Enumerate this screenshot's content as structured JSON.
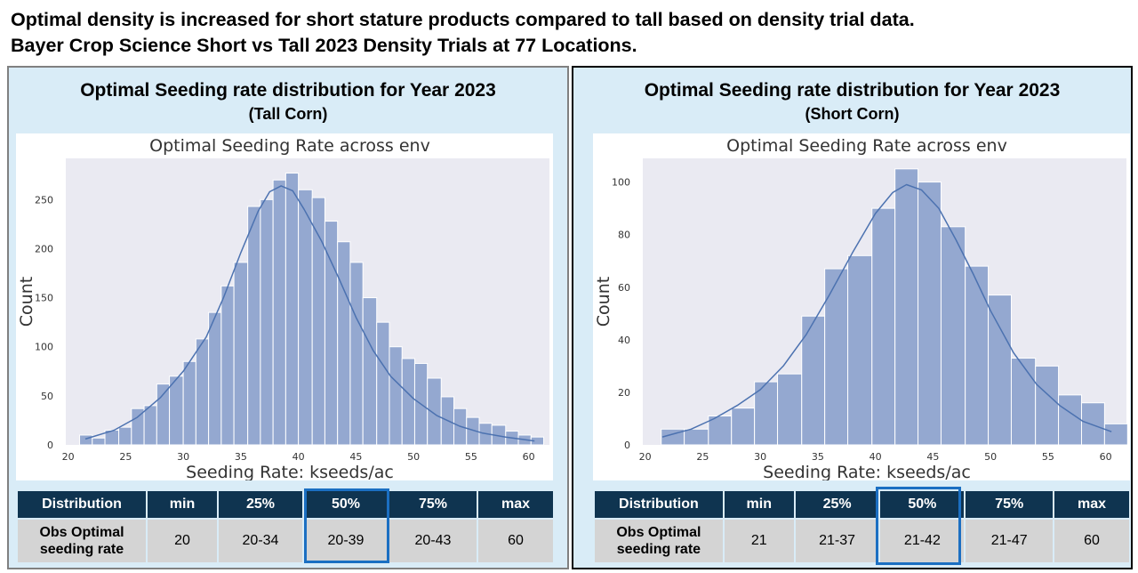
{
  "headline": {
    "line1": "Optimal density is increased for short stature products compared to tall based on density trial data.",
    "line2": "Bayer Crop Science Short vs Tall 2023 Density Trials at 77 Locations."
  },
  "colors": {
    "bar": "#94a8d0",
    "line": "#4c72b0",
    "plot_bg": "#eaeaf2",
    "header_bg": "#0f3450",
    "cell_bg": "#d4d4d4",
    "highlight": "#1b6fc2",
    "panel_bg": "#d9ecf7"
  },
  "panels": [
    {
      "title": "Optimal Seeding rate distribution for Year 2023",
      "subtitle": "(Tall Corn)",
      "table": {
        "headers": [
          "Distribution",
          "min",
          "25%",
          "50%",
          "75%",
          "max"
        ],
        "row_label_1": "Obs Optimal",
        "row_label_2": "seeding rate",
        "values": [
          "20",
          "20-34",
          "20-39",
          "20-43",
          "60"
        ],
        "highlight_column": "50%"
      }
    },
    {
      "title": "Optimal Seeding rate distribution for Year 2023",
      "subtitle": "(Short Corn)",
      "table": {
        "headers": [
          "Distribution",
          "min",
          "25%",
          "50%",
          "75%",
          "max"
        ],
        "row_label_1": "Obs Optimal",
        "row_label_2": "seeding rate",
        "values": [
          "21",
          "21-37",
          "21-42",
          "21-47",
          "60"
        ],
        "highlight_column": "50%"
      }
    }
  ],
  "chart_data": [
    {
      "type": "bar",
      "title": "Optimal Seeding Rate across env",
      "xlabel": "Seeding Rate: kseeds/ac",
      "ylabel": "Count",
      "xlim": [
        19.8,
        61.8
      ],
      "ylim": [
        0,
        292
      ],
      "xticks": [
        20,
        25,
        30,
        35,
        40,
        45,
        50,
        55,
        60
      ],
      "yticks": [
        0,
        50,
        100,
        150,
        200,
        250
      ],
      "bin_edges": [
        21.0,
        22.1,
        23.2,
        24.4,
        25.5,
        26.6,
        27.7,
        28.8,
        30.0,
        31.1,
        32.2,
        33.3,
        34.4,
        35.6,
        36.7,
        37.8,
        38.9,
        40.0,
        41.2,
        42.3,
        43.4,
        44.5,
        45.6,
        46.8,
        47.9,
        49.0,
        50.1,
        51.2,
        52.4,
        53.5,
        54.6,
        55.7,
        56.8,
        58.0,
        59.1,
        60.2
      ],
      "counts": [
        10,
        7,
        15,
        18,
        37,
        40,
        62,
        70,
        85,
        108,
        135,
        162,
        186,
        243,
        250,
        270,
        277,
        260,
        252,
        228,
        207,
        186,
        150,
        125,
        100,
        88,
        83,
        68,
        49,
        37,
        28,
        22,
        20,
        14,
        10,
        8
      ],
      "kde": [
        [
          21.5,
          6
        ],
        [
          24,
          15
        ],
        [
          26,
          28
        ],
        [
          28,
          48
        ],
        [
          30,
          75
        ],
        [
          32,
          110
        ],
        [
          33.5,
          150
        ],
        [
          35,
          196
        ],
        [
          36.5,
          238
        ],
        [
          37.5,
          258
        ],
        [
          38.5,
          264
        ],
        [
          39.5,
          259
        ],
        [
          40.5,
          240
        ],
        [
          42,
          208
        ],
        [
          43.5,
          170
        ],
        [
          45,
          130
        ],
        [
          46.5,
          96
        ],
        [
          48,
          70
        ],
        [
          50,
          47
        ],
        [
          52,
          30
        ],
        [
          54,
          19
        ],
        [
          56,
          12
        ],
        [
          58,
          8
        ],
        [
          60.5,
          4
        ]
      ],
      "grid": false,
      "legend": "none"
    },
    {
      "type": "bar",
      "title": "Optimal Seeding Rate across env",
      "xlabel": "Seeding Rate: kseeds/ac",
      "ylabel": "Count",
      "xlim": [
        19.8,
        61.8
      ],
      "ylim": [
        0,
        109
      ],
      "xticks": [
        20,
        25,
        30,
        35,
        40,
        45,
        50,
        55,
        60
      ],
      "yticks": [
        0,
        20,
        40,
        60,
        80,
        100
      ],
      "bin_edges": [
        21.4,
        23.4,
        25.5,
        27.5,
        29.5,
        31.5,
        33.6,
        35.6,
        37.6,
        39.7,
        41.7,
        43.7,
        45.7,
        47.8,
        49.8,
        51.8,
        53.9,
        55.9,
        57.9,
        59.9
      ],
      "counts": [
        6,
        6,
        11,
        14,
        24,
        27,
        49,
        67,
        72,
        90,
        105,
        100,
        83,
        68,
        57,
        33,
        30,
        19,
        16,
        8
      ],
      "kde": [
        [
          21.5,
          3
        ],
        [
          24,
          6
        ],
        [
          26,
          10
        ],
        [
          28,
          15
        ],
        [
          30,
          21
        ],
        [
          32,
          30
        ],
        [
          34,
          42
        ],
        [
          36,
          57
        ],
        [
          38,
          73
        ],
        [
          40,
          88
        ],
        [
          41.5,
          96
        ],
        [
          42.7,
          99
        ],
        [
          44,
          97
        ],
        [
          45.5,
          90
        ],
        [
          47,
          78
        ],
        [
          48.5,
          65
        ],
        [
          50,
          51
        ],
        [
          52,
          35
        ],
        [
          54,
          23
        ],
        [
          56,
          15
        ],
        [
          58,
          9
        ],
        [
          60.5,
          5
        ]
      ],
      "grid": false,
      "legend": "none"
    }
  ]
}
